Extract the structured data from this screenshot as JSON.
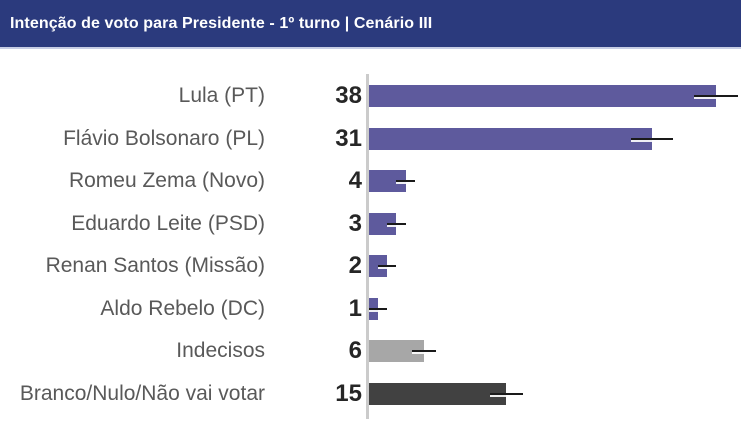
{
  "header": {
    "title": "Intenção de voto para Presidente - 1º turno | Cenário III",
    "background_color": "#2b3a7d",
    "text_color": "#ffffff"
  },
  "chart_data": {
    "type": "bar",
    "orientation": "horizontal",
    "title": "Intenção de voto para Presidente - 1º turno | Cenário III",
    "categories": [
      "Lula (PT)",
      "Flávio Bolsonaro (PL)",
      "Romeu Zema (Novo)",
      "Eduardo Leite (PSD)",
      "Renan Santos (Missão)",
      "Aldo Rebelo (DC)",
      "Indecisos",
      "Branco/Nulo/Não vai votar"
    ],
    "values": [
      38,
      31,
      4,
      3,
      2,
      1,
      6,
      15
    ],
    "errors": [
      2.4,
      2.3,
      1.0,
      1.0,
      1.0,
      1.0,
      1.3,
      1.8
    ],
    "colors": [
      "#5e5a9d",
      "#5e5a9d",
      "#5e5a9d",
      "#5e5a9d",
      "#5e5a9d",
      "#5e5a9d",
      "#a7a7a7",
      "#414141"
    ],
    "xlim": [
      0,
      40.7
    ],
    "xlabel": "",
    "ylabel": "",
    "grid": false,
    "legend": false,
    "value_labels_shown": true,
    "axis_line_color": "#cbcbcb",
    "error_bar_color": "#1a1a1a",
    "label_color": "#595959",
    "value_label_color": "#262626"
  }
}
